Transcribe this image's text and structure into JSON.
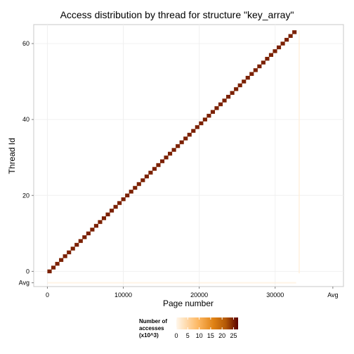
{
  "chart_data": {
    "type": "heatmap",
    "title": "Access distribution by thread for structure \"key_array\"",
    "xlabel": "Page number",
    "ylabel": "Thread Id",
    "x_ticks": [
      "0",
      "10000",
      "20000",
      "30000",
      "Avg"
    ],
    "x_tick_values": [
      0,
      10000,
      20000,
      30000
    ],
    "y_ticks": [
      "0",
      "20",
      "40",
      "60",
      "Avg"
    ],
    "y_tick_values": [
      0,
      20,
      40,
      60
    ],
    "xlim": [
      -1800,
      39000
    ],
    "ylim": [
      -4,
      65
    ],
    "threads": 64,
    "pages_per_thread": 512,
    "max_page": 32768,
    "value_per_page_x1000": 25,
    "avg_value_x1000": 0.4,
    "grid": true,
    "legend": {
      "title_lines": [
        "Number of",
        "accesses",
        "(x10^3)"
      ],
      "ticks": [
        "0",
        "5",
        "10",
        "15",
        "20",
        "25"
      ],
      "tick_values": [
        0,
        5,
        10,
        15,
        20,
        25
      ],
      "range": [
        0,
        27
      ],
      "position": "bottom"
    },
    "colors": {
      "low": "#fff7ec",
      "mid": "#e08214",
      "high": "#5a0000",
      "panel_border": "#c8c8c8",
      "grid": "#f0f0f0"
    }
  }
}
